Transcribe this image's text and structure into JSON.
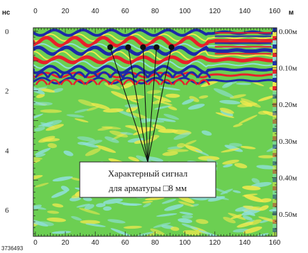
{
  "figure": {
    "left_unit": "нс",
    "right_unit": "м",
    "x_ticks_top": [
      "0",
      "20",
      "40",
      "60",
      "80",
      "100",
      "120",
      "140",
      "160"
    ],
    "x_ticks_bottom": [
      "0",
      "20",
      "40",
      "60",
      "80",
      "100",
      "120",
      "140",
      "160"
    ],
    "y_ticks_left": [
      "0",
      "2",
      "4",
      "6"
    ],
    "y_ticks_right": [
      "0.00м",
      "0.10м",
      "0.20м",
      "0.30м",
      "0.40м",
      "0.50м"
    ],
    "callout_line1": "Характерный сигнал",
    "callout_line2": "для арматуры □8 мм",
    "footer_code": "3736493",
    "rebar_marker_x": [
      50,
      62,
      72,
      81,
      91
    ]
  },
  "colors": {
    "background_green": "#6ccf52",
    "positive_red": "#e8202a",
    "negative_blue": "#1c2aa8",
    "light_yellow": "#f1e94e",
    "light_cyan": "#8fe0d8"
  }
}
